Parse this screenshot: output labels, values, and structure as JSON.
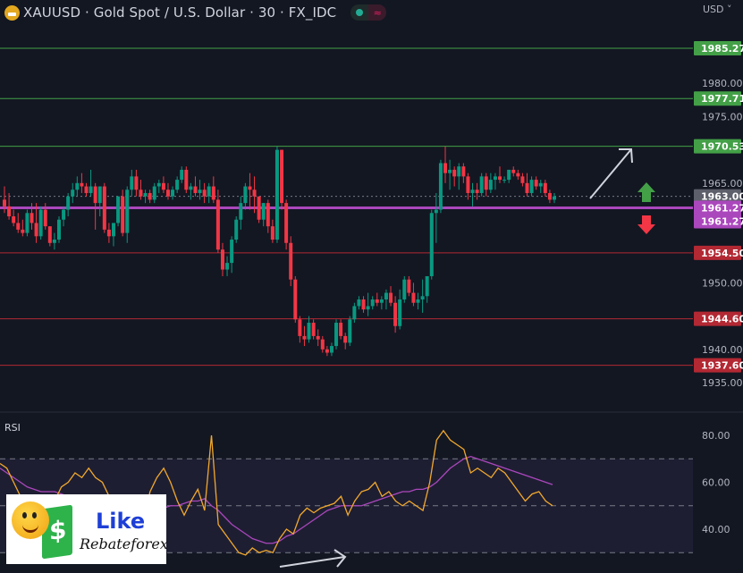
{
  "header": {
    "title": "XAUUSD · Gold Spot / U.S. Dollar · 30 · FX_IDC",
    "symbol": "XAUUSD",
    "description": "Gold Spot / U.S. Dollar",
    "interval": "30",
    "exchange": "FX_IDC",
    "currency": "USD",
    "currency_chevron": "˅",
    "status_icon": "≈"
  },
  "colors": {
    "background": "#131722",
    "up": "#089981",
    "down": "#f23645",
    "resistance": "#43a047",
    "support": "#b22833",
    "pivot": "#ab47bc",
    "rsi": "#f2a92c",
    "rsi_ma": "#ab47bc",
    "current": "#5d606b"
  },
  "price_axis": {
    "ticks": [
      "1980.00",
      "1975.00",
      "1965.00",
      "1950.00",
      "1940.00",
      "1935.00"
    ],
    "tick_values": [
      1980,
      1975,
      1965,
      1950,
      1940,
      1935
    ]
  },
  "levels": [
    {
      "label": "1985.27",
      "value": 1985.27,
      "type": "resistance"
    },
    {
      "label": "1977.71",
      "value": 1977.71,
      "type": "resistance"
    },
    {
      "label": "1970.53",
      "value": 1970.53,
      "type": "resistance"
    },
    {
      "label": "1963.00",
      "value": 1963.0,
      "type": "current"
    },
    {
      "label": "1961.27",
      "value": 1961.27,
      "type": "pivot"
    },
    {
      "label": "1961.27",
      "value": 1961.27,
      "type": "pivot"
    },
    {
      "label": "1954.50",
      "value": 1954.5,
      "type": "support"
    },
    {
      "label": "1944.60",
      "value": 1944.6,
      "type": "support"
    },
    {
      "label": "1937.60",
      "value": 1937.6,
      "type": "support"
    }
  ],
  "rsi": {
    "label": "RSI",
    "ticks": [
      "80.00",
      "60.00",
      "40.00"
    ],
    "tick_values": [
      80,
      60,
      40
    ],
    "upper_band": 70,
    "middle_band": 50,
    "lower_band": 30
  },
  "annotations": {
    "up_arrow": "bullish-arrow",
    "down_arrow": "bearish-arrow"
  },
  "ad": {
    "like": "Like",
    "brand": "Rebateforex",
    "bill_symbol": "$"
  },
  "chart_data": {
    "type": "candlestick",
    "title": "XAUUSD · Gold Spot / U.S. Dollar · 30 · FX_IDC",
    "xlabel": "",
    "ylabel": "USD",
    "ylim": [
      1932,
      1990
    ],
    "grid": false,
    "horizontal_levels": [
      1985.27,
      1977.71,
      1970.53,
      1961.27,
      1954.5,
      1944.6,
      1937.6
    ],
    "last_price": 1963.0,
    "ohlc": [
      [
        1962.5,
        1964.5,
        1960.5,
        1961.5
      ],
      [
        1961.5,
        1963.5,
        1959.5,
        1960.0
      ],
      [
        1960.0,
        1961.0,
        1958.5,
        1959.0
      ],
      [
        1959.0,
        1960.5,
        1957.5,
        1958.0
      ],
      [
        1958.0,
        1959.5,
        1957.0,
        1957.5
      ],
      [
        1957.5,
        1961.0,
        1957.0,
        1960.5
      ],
      [
        1960.5,
        1962.0,
        1958.0,
        1959.0
      ],
      [
        1959.0,
        1962.0,
        1956.0,
        1957.0
      ],
      [
        1957.0,
        1961.5,
        1956.5,
        1961.0
      ],
      [
        1961.0,
        1962.0,
        1958.0,
        1958.5
      ],
      [
        1958.5,
        1958.5,
        1955.5,
        1956.0
      ],
      [
        1956.0,
        1957.5,
        1955.0,
        1956.5
      ],
      [
        1956.5,
        1960.0,
        1956.0,
        1959.5
      ],
      [
        1959.5,
        1961.5,
        1958.5,
        1961.0
      ],
      [
        1961.0,
        1963.5,
        1960.0,
        1963.0
      ],
      [
        1963.0,
        1965.0,
        1962.0,
        1964.0
      ],
      [
        1964.0,
        1966.0,
        1963.0,
        1965.0
      ],
      [
        1965.0,
        1966.5,
        1963.5,
        1964.5
      ],
      [
        1964.5,
        1965.0,
        1963.0,
        1963.5
      ],
      [
        1963.5,
        1967.0,
        1963.0,
        1964.5
      ],
      [
        1964.5,
        1965.0,
        1958.0,
        1962.0
      ],
      [
        1962.0,
        1964.5,
        1960.0,
        1964.5
      ],
      [
        1964.5,
        1965.0,
        1957.5,
        1958.0
      ],
      [
        1958.0,
        1959.0,
        1956.0,
        1957.0
      ],
      [
        1957.0,
        1959.0,
        1955.5,
        1959.0
      ],
      [
        1959.0,
        1963.0,
        1958.5,
        1963.0
      ],
      [
        1963.0,
        1964.0,
        1957.0,
        1957.5
      ],
      [
        1957.5,
        1964.5,
        1956.0,
        1964.0
      ],
      [
        1964.0,
        1967.0,
        1963.0,
        1966.0
      ],
      [
        1966.0,
        1967.0,
        1963.0,
        1964.0
      ],
      [
        1964.0,
        1965.5,
        1962.5,
        1963.0
      ],
      [
        1963.0,
        1964.0,
        1962.0,
        1963.5
      ],
      [
        1963.5,
        1964.0,
        1962.0,
        1962.5
      ],
      [
        1962.5,
        1965.0,
        1962.0,
        1964.5
      ],
      [
        1964.5,
        1965.5,
        1963.5,
        1965.0
      ],
      [
        1965.0,
        1966.0,
        1963.5,
        1964.0
      ],
      [
        1964.0,
        1965.0,
        1962.5,
        1963.0
      ],
      [
        1963.0,
        1964.5,
        1962.5,
        1964.0
      ],
      [
        1964.0,
        1966.0,
        1963.5,
        1965.5
      ],
      [
        1965.5,
        1967.5,
        1965.0,
        1967.0
      ],
      [
        1967.0,
        1967.5,
        1963.5,
        1964.0
      ],
      [
        1964.0,
        1965.0,
        1962.5,
        1964.5
      ],
      [
        1964.5,
        1966.0,
        1963.0,
        1963.5
      ],
      [
        1963.5,
        1965.5,
        1962.5,
        1964.0
      ],
      [
        1964.0,
        1965.0,
        1962.0,
        1963.0
      ],
      [
        1963.0,
        1965.0,
        1962.0,
        1964.5
      ],
      [
        1964.5,
        1966.0,
        1962.0,
        1962.5
      ],
      [
        1962.5,
        1964.0,
        1954.5,
        1955.0
      ],
      [
        1955.0,
        1956.0,
        1951.0,
        1952.0
      ],
      [
        1952.0,
        1954.0,
        1951.0,
        1953.0
      ],
      [
        1953.0,
        1957.0,
        1951.5,
        1956.5
      ],
      [
        1956.5,
        1960.0,
        1956.0,
        1959.5
      ],
      [
        1959.5,
        1963.0,
        1958.0,
        1962.0
      ],
      [
        1962.0,
        1965.0,
        1961.0,
        1964.5
      ],
      [
        1964.5,
        1966.5,
        1961.0,
        1964.0
      ],
      [
        1964.0,
        1966.0,
        1960.5,
        1963.0
      ],
      [
        1963.0,
        1962.5,
        1959.0,
        1959.5
      ],
      [
        1959.5,
        1962.0,
        1958.5,
        1962.0
      ],
      [
        1962.0,
        1962.5,
        1957.5,
        1958.5
      ],
      [
        1958.5,
        1959.5,
        1956.0,
        1956.5
      ],
      [
        1956.5,
        1970.5,
        1956.0,
        1970.0
      ],
      [
        1970.0,
        1970.0,
        1961.0,
        1962.0
      ],
      [
        1962.0,
        1962.5,
        1955.0,
        1956.0
      ],
      [
        1956.0,
        1957.0,
        1949.5,
        1950.5
      ],
      [
        1950.5,
        1951.0,
        1944.0,
        1944.5
      ],
      [
        1944.5,
        1945.0,
        1941.0,
        1942.0
      ],
      [
        1942.0,
        1943.5,
        1940.5,
        1941.5
      ],
      [
        1941.5,
        1945.0,
        1941.0,
        1944.0
      ],
      [
        1944.0,
        1944.5,
        1941.5,
        1942.0
      ],
      [
        1942.0,
        1943.0,
        1940.5,
        1941.5
      ],
      [
        1941.5,
        1942.0,
        1939.5,
        1940.0
      ],
      [
        1940.0,
        1940.5,
        1939.0,
        1939.5
      ],
      [
        1939.5,
        1941.0,
        1939.0,
        1940.5
      ],
      [
        1940.5,
        1944.5,
        1940.0,
        1944.0
      ],
      [
        1944.0,
        1944.5,
        1941.5,
        1942.0
      ],
      [
        1942.0,
        1942.5,
        1940.0,
        1941.0
      ],
      [
        1941.0,
        1945.0,
        1940.5,
        1944.5
      ],
      [
        1944.5,
        1947.0,
        1944.0,
        1946.5
      ],
      [
        1946.5,
        1948.0,
        1946.0,
        1947.5
      ],
      [
        1947.5,
        1948.0,
        1945.5,
        1946.0
      ],
      [
        1946.0,
        1948.5,
        1945.0,
        1946.5
      ],
      [
        1946.5,
        1948.0,
        1946.0,
        1947.5
      ],
      [
        1947.5,
        1948.5,
        1946.5,
        1947.0
      ],
      [
        1947.0,
        1948.0,
        1946.0,
        1947.5
      ],
      [
        1947.5,
        1949.0,
        1946.0,
        1948.5
      ],
      [
        1948.5,
        1949.5,
        1946.5,
        1947.0
      ],
      [
        1947.0,
        1948.0,
        1942.5,
        1943.5
      ],
      [
        1943.5,
        1949.0,
        1943.0,
        1947.5
      ],
      [
        1947.5,
        1951.0,
        1947.0,
        1950.5
      ],
      [
        1950.5,
        1951.0,
        1948.0,
        1948.5
      ],
      [
        1948.5,
        1950.0,
        1946.5,
        1947.0
      ],
      [
        1947.0,
        1948.5,
        1946.0,
        1947.5
      ],
      [
        1947.5,
        1950.5,
        1945.5,
        1948.0
      ],
      [
        1948.0,
        1950.5,
        1947.0,
        1951.0
      ],
      [
        1951.0,
        1961.0,
        1950.5,
        1960.5
      ],
      [
        1960.5,
        1963.5,
        1956.0,
        1961.0
      ],
      [
        1961.0,
        1968.5,
        1960.5,
        1968.0
      ],
      [
        1968.0,
        1970.5,
        1965.0,
        1966.5
      ],
      [
        1966.5,
        1968.5,
        1964.0,
        1967.0
      ],
      [
        1967.0,
        1967.5,
        1964.5,
        1966.0
      ],
      [
        1966.0,
        1968.0,
        1964.0,
        1967.5
      ],
      [
        1967.5,
        1968.0,
        1965.0,
        1966.0
      ],
      [
        1966.0,
        1966.5,
        1962.5,
        1963.5
      ],
      [
        1963.5,
        1965.0,
        1961.5,
        1964.0
      ],
      [
        1964.0,
        1965.0,
        1962.5,
        1963.5
      ],
      [
        1963.5,
        1966.5,
        1963.0,
        1966.0
      ],
      [
        1966.0,
        1966.5,
        1963.0,
        1964.0
      ],
      [
        1964.0,
        1966.5,
        1963.5,
        1965.5
      ],
      [
        1965.5,
        1966.5,
        1964.0,
        1966.0
      ],
      [
        1966.0,
        1967.5,
        1965.0,
        1965.5
      ],
      [
        1965.5,
        1966.0,
        1965.0,
        1965.5
      ],
      [
        1965.5,
        1967.0,
        1965.0,
        1967.0
      ],
      [
        1967.0,
        1967.5,
        1966.0,
        1966.5
      ],
      [
        1966.5,
        1967.0,
        1965.5,
        1966.0
      ],
      [
        1966.0,
        1966.5,
        1964.5,
        1965.0
      ],
      [
        1965.0,
        1966.5,
        1963.0,
        1963.5
      ],
      [
        1963.5,
        1966.0,
        1963.0,
        1965.5
      ],
      [
        1965.5,
        1966.0,
        1964.0,
        1964.5
      ],
      [
        1964.5,
        1965.5,
        1963.5,
        1965.0
      ],
      [
        1965.0,
        1965.5,
        1963.0,
        1963.5
      ],
      [
        1963.5,
        1964.0,
        1962.0,
        1962.5
      ],
      [
        1962.5,
        1963.5,
        1962.0,
        1963.0
      ]
    ],
    "rsi_series": {
      "name": "RSI",
      "values": [
        68,
        66,
        60,
        54,
        50,
        46,
        53,
        47,
        52,
        58,
        60,
        64,
        62,
        66,
        62,
        60,
        54,
        50,
        42,
        34,
        32,
        44,
        56,
        62,
        66,
        60,
        52,
        46,
        52,
        57,
        48,
        80,
        42,
        38,
        34,
        30,
        29,
        32,
        30,
        31,
        30,
        36,
        40,
        38,
        46,
        49,
        47,
        49,
        50,
        51,
        54,
        46,
        52,
        56,
        57,
        60,
        54,
        56,
        52,
        50,
        52,
        50,
        48,
        60,
        78,
        82,
        78,
        76,
        74,
        64,
        66,
        64,
        62,
        66,
        64,
        60,
        56,
        52,
        55,
        56,
        52,
        50
      ],
      "ma_values": [
        66,
        64,
        62,
        60,
        58,
        57,
        56,
        56,
        56,
        55,
        54,
        53,
        53,
        52,
        52,
        52,
        51,
        51,
        50,
        49,
        48,
        47,
        47,
        48,
        49,
        50,
        50,
        51,
        52,
        52,
        53,
        50,
        48,
        45,
        42,
        40,
        38,
        36,
        35,
        34,
        34,
        35,
        37,
        38,
        40,
        42,
        44,
        46,
        48,
        49,
        50,
        50,
        50,
        50,
        51,
        52,
        53,
        54,
        55,
        56,
        56,
        57,
        57,
        58,
        60,
        63,
        66,
        68,
        70,
        71,
        70,
        69,
        68,
        67,
        66,
        65,
        64,
        63,
        62,
        61,
        60,
        59
      ]
    },
    "rsi_ylim": [
      25,
      90
    ]
  }
}
